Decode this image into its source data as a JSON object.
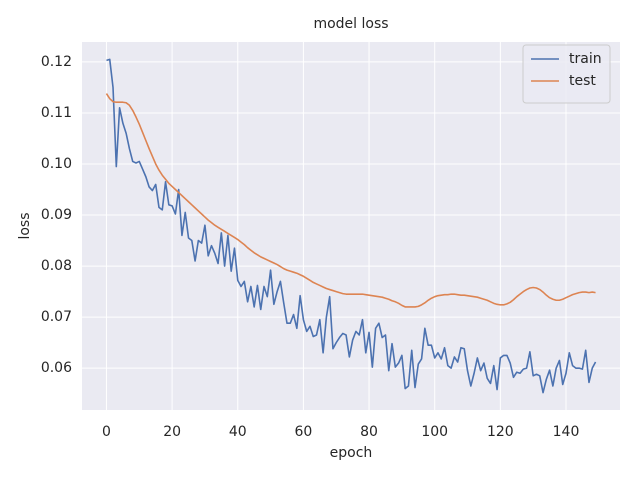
{
  "chart_data": {
    "type": "line",
    "title": "model loss",
    "xlabel": "epoch",
    "ylabel": "loss",
    "x": [
      0,
      1,
      2,
      3,
      4,
      5,
      6,
      7,
      8,
      9,
      10,
      11,
      12,
      13,
      14,
      15,
      16,
      17,
      18,
      19,
      20,
      21,
      22,
      23,
      24,
      25,
      26,
      27,
      28,
      29,
      30,
      31,
      32,
      33,
      34,
      35,
      36,
      37,
      38,
      39,
      40,
      41,
      42,
      43,
      44,
      45,
      46,
      47,
      48,
      49,
      50,
      51,
      52,
      53,
      54,
      55,
      56,
      57,
      58,
      59,
      60,
      61,
      62,
      63,
      64,
      65,
      66,
      67,
      68,
      69,
      70,
      71,
      72,
      73,
      74,
      75,
      76,
      77,
      78,
      79,
      80,
      81,
      82,
      83,
      84,
      85,
      86,
      87,
      88,
      89,
      90,
      91,
      92,
      93,
      94,
      95,
      96,
      97,
      98,
      99,
      100,
      101,
      102,
      103,
      104,
      105,
      106,
      107,
      108,
      109,
      110,
      111,
      112,
      113,
      114,
      115,
      116,
      117,
      118,
      119,
      120,
      121,
      122,
      123,
      124,
      125,
      126,
      127,
      128,
      129,
      130,
      131,
      132,
      133,
      134,
      135,
      136,
      137,
      138,
      139,
      140,
      141,
      142,
      143,
      144,
      145,
      146,
      147,
      148,
      149
    ],
    "series": [
      {
        "name": "train",
        "color": "#4c72b0",
        "values": [
          0.1203,
          0.1205,
          0.115,
          0.0995,
          0.111,
          0.108,
          0.106,
          0.103,
          0.1005,
          0.1002,
          0.1005,
          0.099,
          0.0975,
          0.0955,
          0.0948,
          0.096,
          0.0915,
          0.091,
          0.0965,
          0.092,
          0.0918,
          0.0902,
          0.095,
          0.086,
          0.0905,
          0.0855,
          0.085,
          0.081,
          0.085,
          0.0845,
          0.088,
          0.082,
          0.084,
          0.0825,
          0.0805,
          0.0865,
          0.08,
          0.086,
          0.079,
          0.0835,
          0.0772,
          0.076,
          0.077,
          0.073,
          0.076,
          0.072,
          0.0762,
          0.0715,
          0.076,
          0.074,
          0.0792,
          0.0725,
          0.075,
          0.077,
          0.0728,
          0.0688,
          0.0688,
          0.0705,
          0.0678,
          0.0742,
          0.0695,
          0.0672,
          0.0682,
          0.0662,
          0.0665,
          0.0695,
          0.063,
          0.07,
          0.074,
          0.0638,
          0.065,
          0.066,
          0.0668,
          0.0665,
          0.0622,
          0.0655,
          0.0672,
          0.0665,
          0.0695,
          0.063,
          0.067,
          0.0602,
          0.0678,
          0.0688,
          0.066,
          0.0665,
          0.0595,
          0.0648,
          0.0602,
          0.061,
          0.0625,
          0.056,
          0.0565,
          0.0635,
          0.0562,
          0.0608,
          0.0618,
          0.0678,
          0.0645,
          0.0645,
          0.062,
          0.063,
          0.0618,
          0.064,
          0.0605,
          0.06,
          0.0622,
          0.0612,
          0.064,
          0.0638,
          0.0595,
          0.0565,
          0.059,
          0.062,
          0.0595,
          0.061,
          0.058,
          0.057,
          0.0605,
          0.0558,
          0.062,
          0.0625,
          0.0625,
          0.061,
          0.0582,
          0.0592,
          0.059,
          0.0598,
          0.06,
          0.0632,
          0.0585,
          0.0588,
          0.0585,
          0.0552,
          0.0578,
          0.0596,
          0.0565,
          0.06,
          0.0615,
          0.0568,
          0.059,
          0.063,
          0.0605,
          0.06,
          0.06,
          0.0598,
          0.0635,
          0.0572,
          0.06,
          0.0612
        ]
      },
      {
        "name": "test",
        "color": "#dd8452",
        "values": [
          0.1138,
          0.1128,
          0.1122,
          0.1121,
          0.1121,
          0.1121,
          0.112,
          0.1115,
          0.1105,
          0.1092,
          0.1078,
          0.1062,
          0.1046,
          0.103,
          0.1015,
          0.1,
          0.0988,
          0.0978,
          0.097,
          0.0962,
          0.0956,
          0.095,
          0.0944,
          0.0938,
          0.0932,
          0.0926,
          0.092,
          0.0914,
          0.0908,
          0.0902,
          0.0896,
          0.089,
          0.0885,
          0.088,
          0.0876,
          0.0872,
          0.0868,
          0.0864,
          0.086,
          0.0856,
          0.0852,
          0.0847,
          0.0842,
          0.0836,
          0.0831,
          0.0826,
          0.0822,
          0.0818,
          0.0815,
          0.0812,
          0.0809,
          0.0806,
          0.0803,
          0.0799,
          0.0795,
          0.0792,
          0.079,
          0.0788,
          0.0786,
          0.0783,
          0.078,
          0.0776,
          0.0772,
          0.0768,
          0.0765,
          0.0762,
          0.0759,
          0.0756,
          0.0754,
          0.0752,
          0.075,
          0.0748,
          0.0746,
          0.0745,
          0.0745,
          0.0745,
          0.0745,
          0.0745,
          0.0745,
          0.0744,
          0.0743,
          0.0742,
          0.0741,
          0.074,
          0.0739,
          0.0737,
          0.0735,
          0.0732,
          0.073,
          0.0727,
          0.0723,
          0.072,
          0.072,
          0.072,
          0.072,
          0.0721,
          0.0724,
          0.0728,
          0.0733,
          0.0737,
          0.074,
          0.0742,
          0.0743,
          0.0744,
          0.0744,
          0.0745,
          0.0745,
          0.0744,
          0.0743,
          0.0743,
          0.0742,
          0.0741,
          0.074,
          0.0739,
          0.0737,
          0.0735,
          0.0733,
          0.073,
          0.0727,
          0.0725,
          0.0724,
          0.0724,
          0.0726,
          0.0729,
          0.0734,
          0.074,
          0.0745,
          0.075,
          0.0754,
          0.0757,
          0.0758,
          0.0757,
          0.0754,
          0.0749,
          0.0743,
          0.0738,
          0.0735,
          0.0733,
          0.0733,
          0.0735,
          0.0738,
          0.0741,
          0.0744,
          0.0746,
          0.0748,
          0.0749,
          0.0749,
          0.0748,
          0.0749,
          0.0748
        ]
      }
    ],
    "xlim": [
      -7.45,
      156.45
    ],
    "ylim": [
      0.0518,
      0.1239
    ],
    "xticks": [
      0,
      20,
      40,
      60,
      80,
      100,
      120,
      140
    ],
    "yticks": [
      0.06,
      0.07,
      0.08,
      0.09,
      {
        "value": 0.1,
        "label": "0.10"
      },
      0.11,
      0.12
    ],
    "grid": true,
    "legend": "upper right"
  }
}
